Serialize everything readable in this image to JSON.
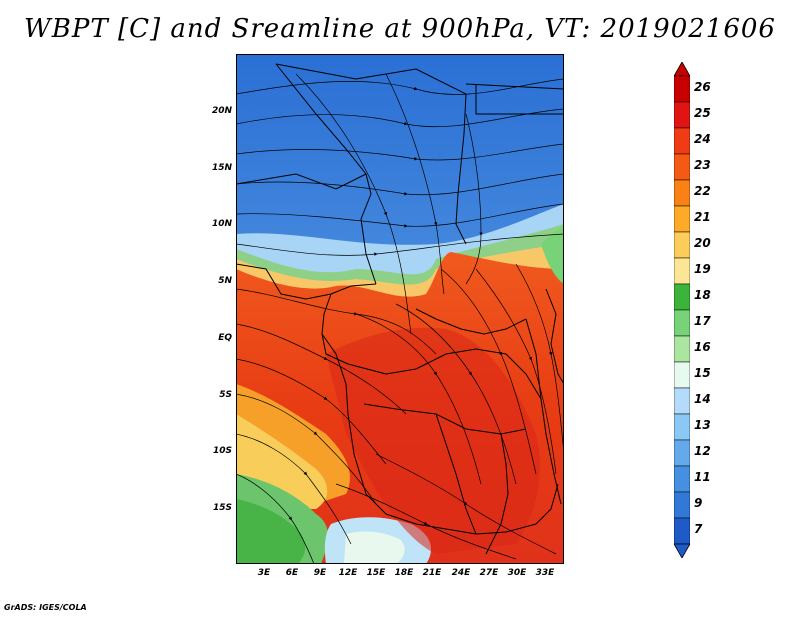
{
  "title": "WBPT [C] and Sreamline at 900hPa, VT: 2019021606",
  "credit": "GrADS: IGES/COLA",
  "lat_labels": [
    "20N",
    "15N",
    "10N",
    "5N",
    "EQ",
    "5S",
    "10S",
    "15S"
  ],
  "lon_labels": [
    "3E",
    "6E",
    "9E",
    "12E",
    "15E",
    "18E",
    "21E",
    "24E",
    "27E",
    "30E",
    "33E"
  ],
  "colorbar": {
    "labels": [
      "26",
      "25",
      "24",
      "23",
      "22",
      "21",
      "20",
      "19",
      "18",
      "17",
      "16",
      "15",
      "14",
      "13",
      "12",
      "11",
      "9",
      "7"
    ],
    "colors": [
      "#c80000",
      "#e11414",
      "#f03c14",
      "#f55a14",
      "#fa8214",
      "#fcaa28",
      "#fccd5a",
      "#fce696",
      "#3cb43c",
      "#78d278",
      "#aae6a0",
      "#e6faf0",
      "#b4dcfa",
      "#8cc8f5",
      "#64aaeb",
      "#4690e1",
      "#3278d7",
      "#1e5ac8"
    ]
  }
}
